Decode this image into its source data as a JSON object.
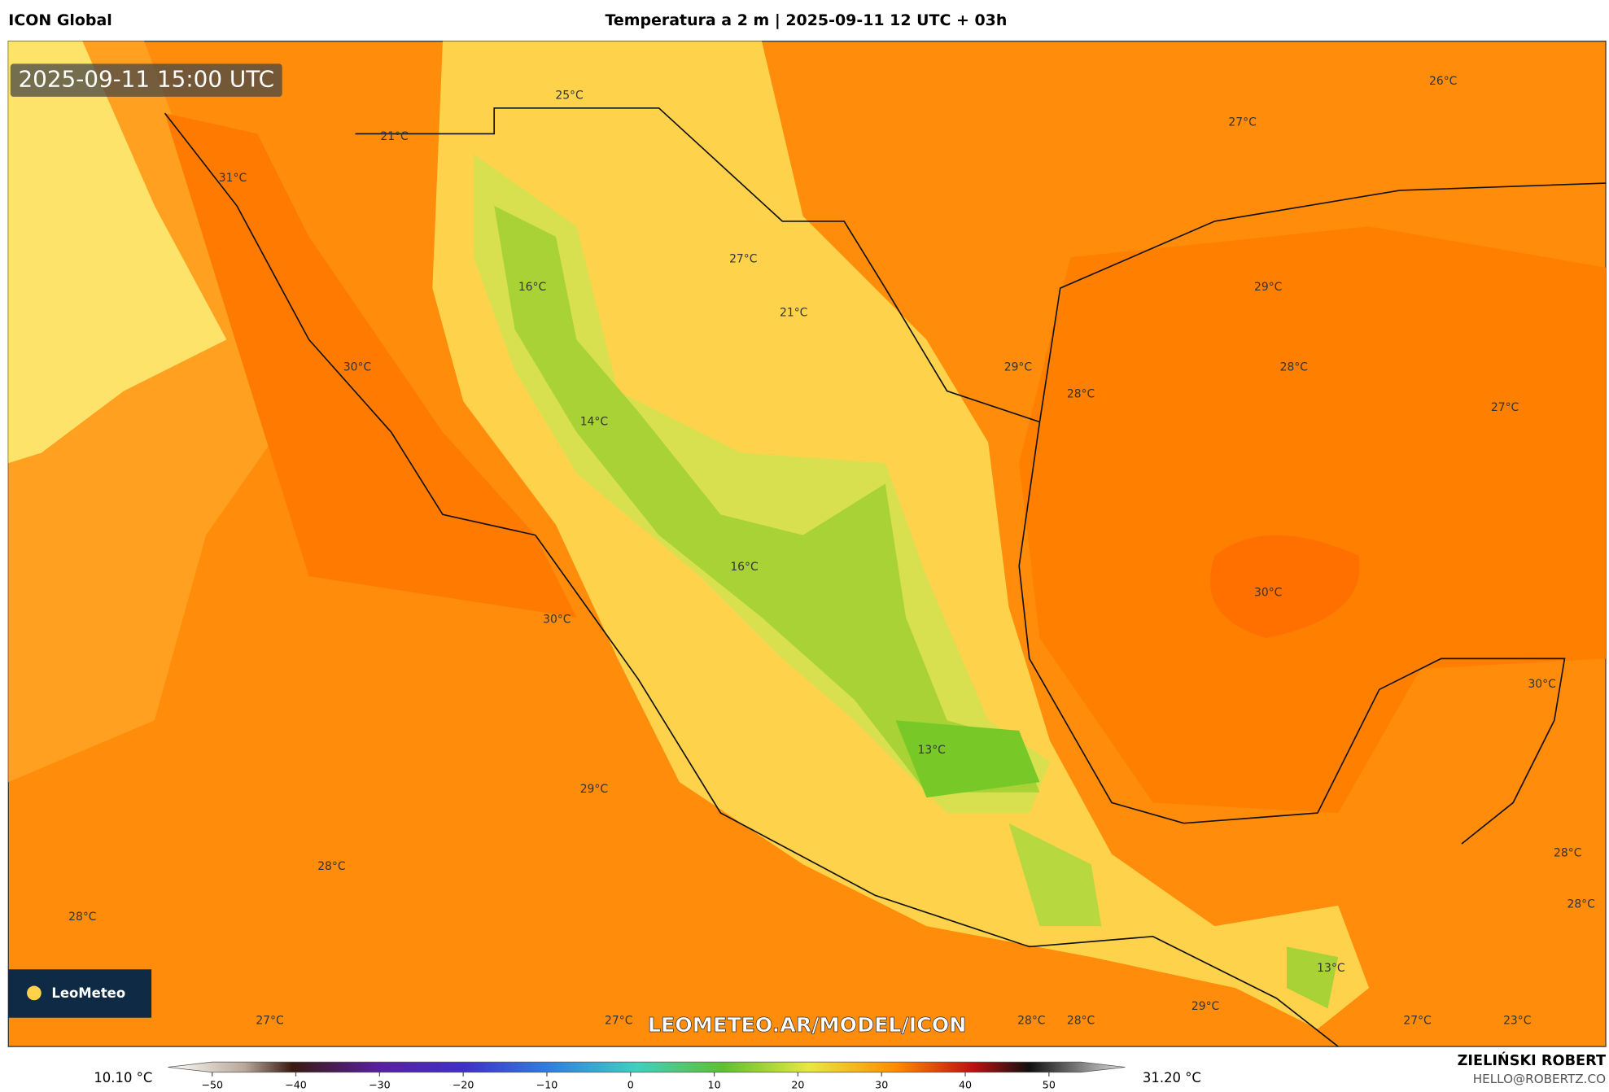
{
  "header": {
    "model": "ICON Global",
    "title": "Temperatura a 2 m | 2025-09-11 12 UTC + 03h"
  },
  "map": {
    "timestamp": "2025-09-11 15:00 UTC",
    "watermark": "LEOMETEO.AR/MODEL/ICON",
    "logo": "LeoMeteo",
    "labels": [
      "31°C",
      "21°C",
      "25°C",
      "27°C",
      "26°C",
      "16°C",
      "27°C",
      "21°C",
      "29°C",
      "30°C",
      "29°C",
      "28°C",
      "28°C",
      "27°C",
      "14°C",
      "16°C",
      "30°C",
      "30°C",
      "30°C",
      "13°C",
      "29°C",
      "28°C",
      "28°C",
      "28°C",
      "28°C",
      "13°C",
      "29°C",
      "27°C",
      "27°C",
      "28°C",
      "28°C",
      "27°C",
      "23°C"
    ]
  },
  "colorbar": {
    "min_label": "10.10 °C",
    "max_label": "31.20 °C",
    "ticks": [
      "−50",
      "−40",
      "−30",
      "−20",
      "−10",
      "0",
      "10",
      "20",
      "30",
      "40",
      "50"
    ]
  },
  "credits": {
    "name": "ZIELIŃSKI ROBERT",
    "email": "HELLO@ROBERTZ.CO"
  }
}
